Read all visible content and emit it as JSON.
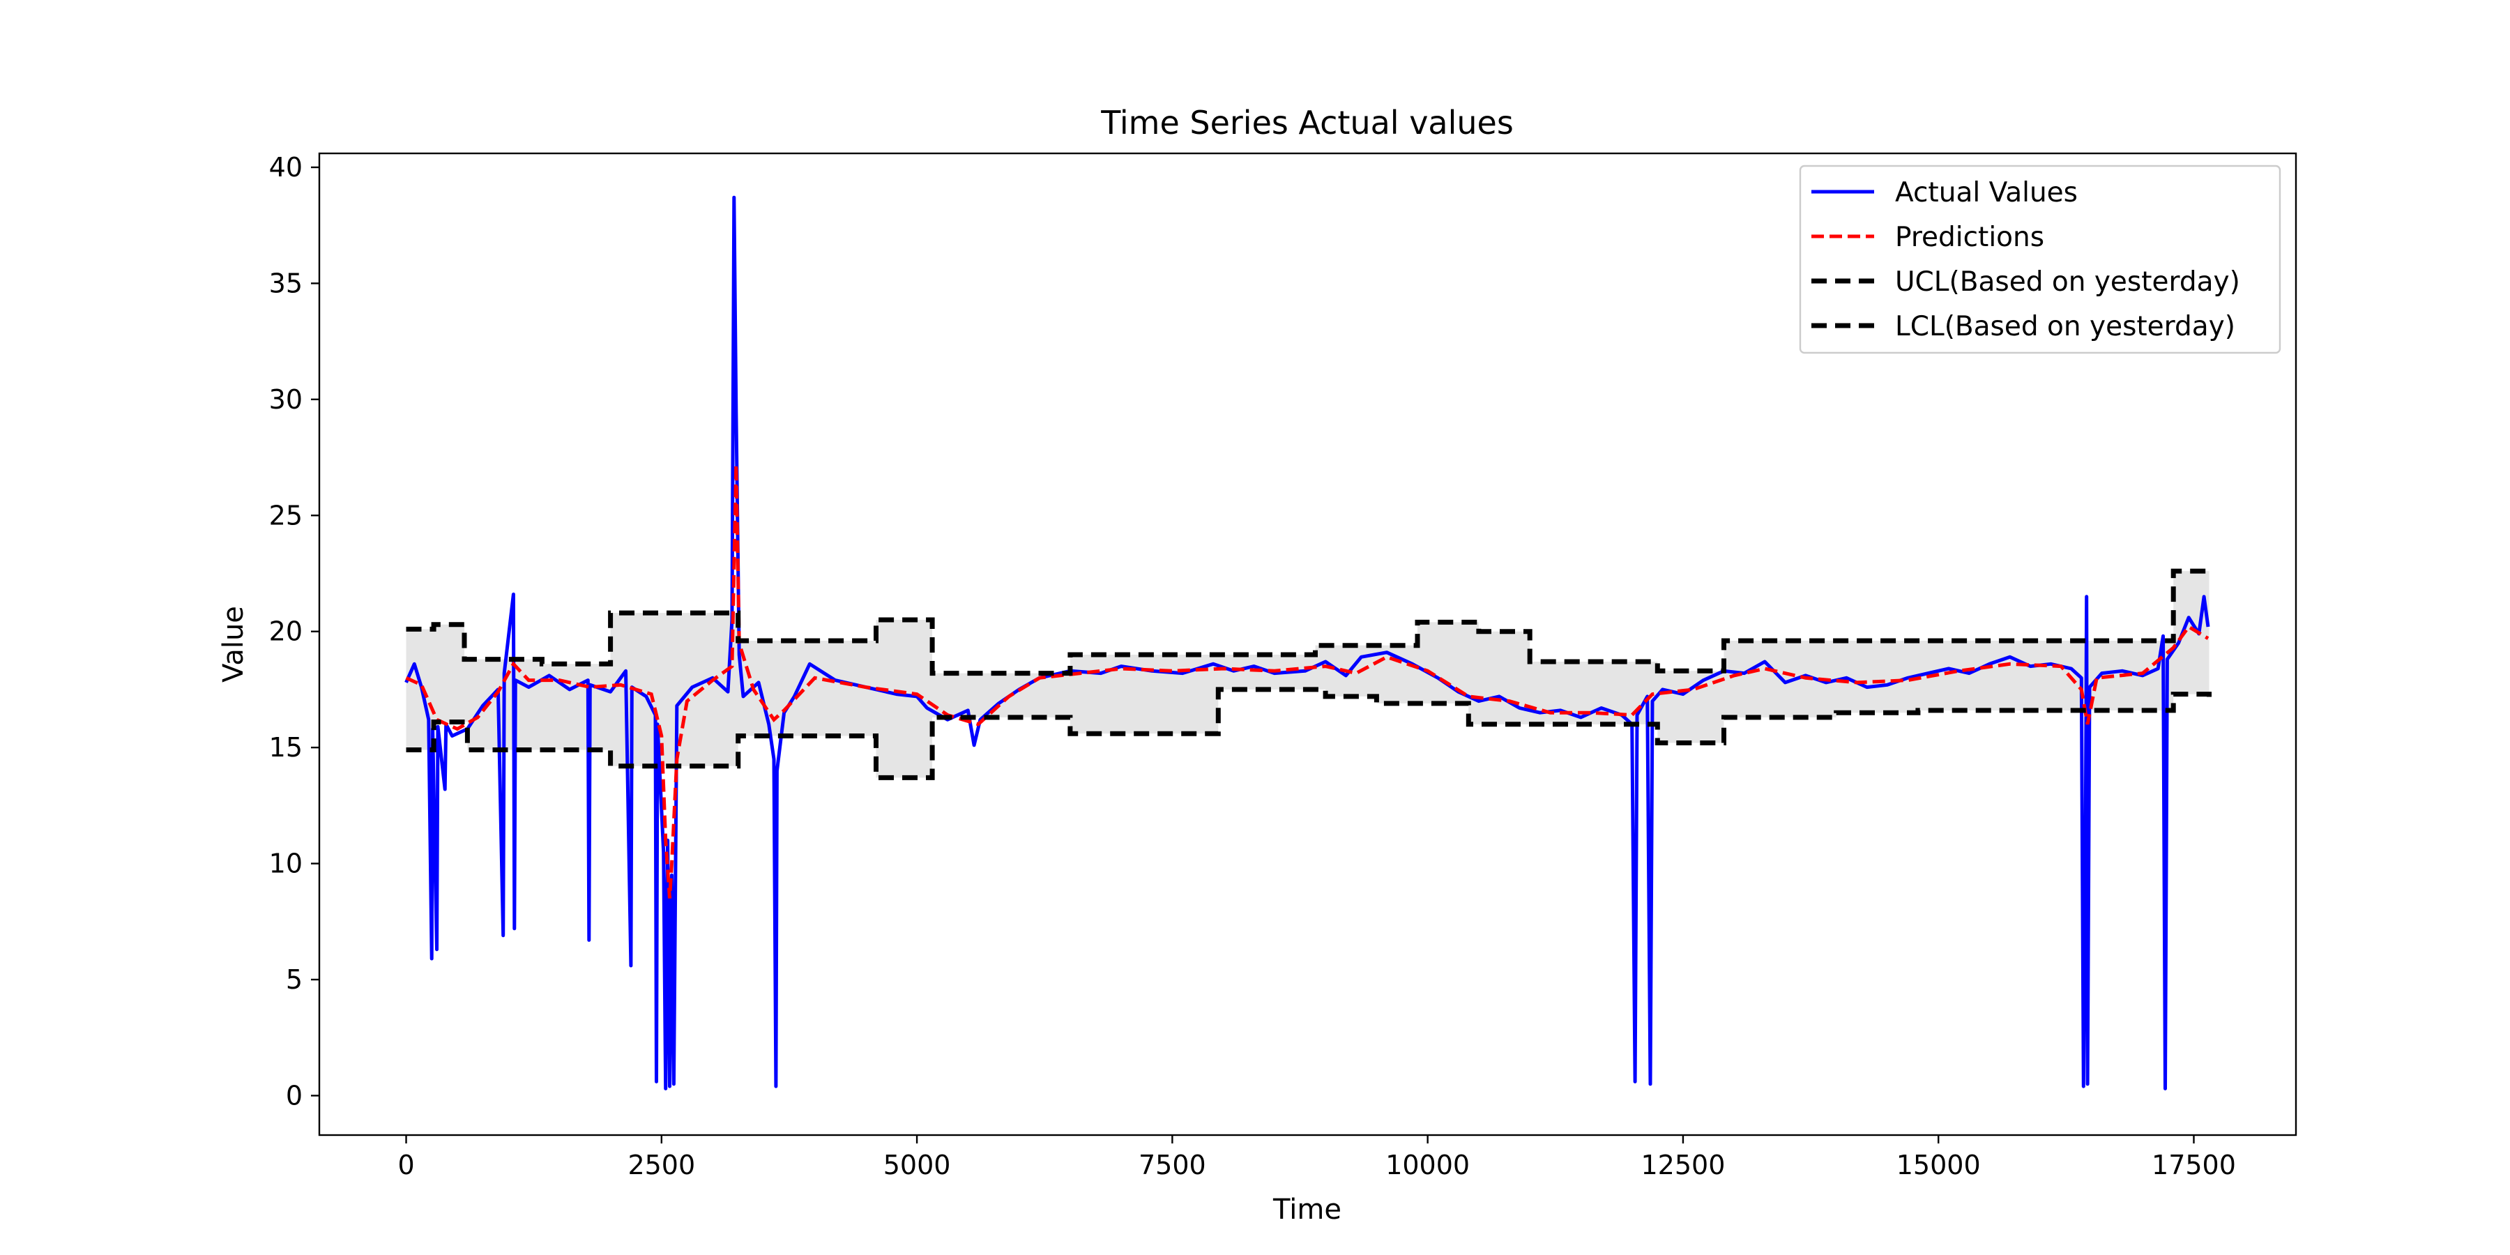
{
  "chart_data": {
    "type": "line",
    "title": "Time Series Actual values",
    "xlabel": "Time",
    "ylabel": "Value",
    "xlim": [
      -850,
      18500
    ],
    "ylim": [
      -1.7,
      40.6
    ],
    "x_ticks": [
      0,
      2500,
      5000,
      7500,
      10000,
      12500,
      15000,
      17500
    ],
    "y_ticks": [
      0,
      5,
      10,
      15,
      20,
      25,
      30,
      35,
      40
    ],
    "grid": false,
    "legend_position": "top-right",
    "colors": {
      "actual": "#0000ff",
      "predictions": "#ff0000",
      "limits": "#000000",
      "band_fill": "#e5e5e5"
    },
    "series": [
      {
        "name": "Actual Values",
        "style": "solid",
        "color": "#0000ff",
        "points": [
          [
            0,
            17.8
          ],
          [
            80,
            18.6
          ],
          [
            150,
            17.6
          ],
          [
            220,
            16.2
          ],
          [
            250,
            5.9
          ],
          [
            260,
            15.8
          ],
          [
            300,
            6.3
          ],
          [
            310,
            15.9
          ],
          [
            380,
            13.2
          ],
          [
            390,
            16.0
          ],
          [
            450,
            15.5
          ],
          [
            600,
            15.8
          ],
          [
            750,
            16.8
          ],
          [
            900,
            17.5
          ],
          [
            950,
            6.9
          ],
          [
            960,
            18.2
          ],
          [
            1050,
            21.6
          ],
          [
            1060,
            7.2
          ],
          [
            1070,
            17.9
          ],
          [
            1200,
            17.6
          ],
          [
            1400,
            18.1
          ],
          [
            1600,
            17.5
          ],
          [
            1780,
            17.9
          ],
          [
            1790,
            6.7
          ],
          [
            1800,
            17.7
          ],
          [
            2000,
            17.4
          ],
          [
            2150,
            18.3
          ],
          [
            2200,
            5.6
          ],
          [
            2210,
            17.6
          ],
          [
            2350,
            17.2
          ],
          [
            2440,
            16.4
          ],
          [
            2450,
            0.6
          ],
          [
            2460,
            16.0
          ],
          [
            2520,
            10.5
          ],
          [
            2540,
            0.3
          ],
          [
            2560,
            11.0
          ],
          [
            2580,
            0.4
          ],
          [
            2600,
            9.5
          ],
          [
            2620,
            0.5
          ],
          [
            2650,
            16.8
          ],
          [
            2800,
            17.6
          ],
          [
            3000,
            18.0
          ],
          [
            3150,
            17.4
          ],
          [
            3190,
            20.5
          ],
          [
            3210,
            38.7
          ],
          [
            3230,
            29.5
          ],
          [
            3260,
            19.0
          ],
          [
            3300,
            17.2
          ],
          [
            3450,
            17.8
          ],
          [
            3550,
            16.0
          ],
          [
            3600,
            14.5
          ],
          [
            3620,
            0.4
          ],
          [
            3630,
            14.0
          ],
          [
            3700,
            16.5
          ],
          [
            3800,
            17.2
          ],
          [
            3950,
            18.6
          ],
          [
            4200,
            17.9
          ],
          [
            4500,
            17.6
          ],
          [
            4800,
            17.3
          ],
          [
            5000,
            17.2
          ],
          [
            5100,
            16.7
          ],
          [
            5300,
            16.2
          ],
          [
            5500,
            16.6
          ],
          [
            5560,
            15.1
          ],
          [
            5620,
            16.2
          ],
          [
            5800,
            16.9
          ],
          [
            6000,
            17.5
          ],
          [
            6200,
            18.0
          ],
          [
            6500,
            18.3
          ],
          [
            6800,
            18.2
          ],
          [
            7000,
            18.5
          ],
          [
            7300,
            18.3
          ],
          [
            7600,
            18.2
          ],
          [
            7900,
            18.6
          ],
          [
            8100,
            18.3
          ],
          [
            8300,
            18.5
          ],
          [
            8500,
            18.2
          ],
          [
            8800,
            18.3
          ],
          [
            9000,
            18.7
          ],
          [
            9200,
            18.1
          ],
          [
            9350,
            18.9
          ],
          [
            9600,
            19.1
          ],
          [
            9850,
            18.6
          ],
          [
            10100,
            18.0
          ],
          [
            10300,
            17.4
          ],
          [
            10500,
            17.0
          ],
          [
            10700,
            17.2
          ],
          [
            10900,
            16.7
          ],
          [
            11100,
            16.5
          ],
          [
            11300,
            16.6
          ],
          [
            11500,
            16.3
          ],
          [
            11700,
            16.7
          ],
          [
            11900,
            16.4
          ],
          [
            12000,
            16.0
          ],
          [
            12030,
            0.6
          ],
          [
            12050,
            16.4
          ],
          [
            12150,
            17.2
          ],
          [
            12180,
            0.5
          ],
          [
            12200,
            17.0
          ],
          [
            12300,
            17.5
          ],
          [
            12500,
            17.3
          ],
          [
            12700,
            17.9
          ],
          [
            12900,
            18.3
          ],
          [
            13100,
            18.2
          ],
          [
            13300,
            18.7
          ],
          [
            13500,
            17.8
          ],
          [
            13700,
            18.1
          ],
          [
            13900,
            17.8
          ],
          [
            14100,
            18.0
          ],
          [
            14300,
            17.6
          ],
          [
            14500,
            17.7
          ],
          [
            14700,
            18.0
          ],
          [
            14900,
            18.2
          ],
          [
            15100,
            18.4
          ],
          [
            15300,
            18.2
          ],
          [
            15500,
            18.6
          ],
          [
            15700,
            18.9
          ],
          [
            15900,
            18.5
          ],
          [
            16100,
            18.6
          ],
          [
            16300,
            18.4
          ],
          [
            16400,
            18.0
          ],
          [
            16420,
            0.4
          ],
          [
            16440,
            11.2
          ],
          [
            16450,
            21.5
          ],
          [
            16460,
            0.5
          ],
          [
            16480,
            17.6
          ],
          [
            16600,
            18.2
          ],
          [
            16800,
            18.3
          ],
          [
            17000,
            18.1
          ],
          [
            17150,
            18.4
          ],
          [
            17200,
            19.8
          ],
          [
            17220,
            0.3
          ],
          [
            17240,
            18.8
          ],
          [
            17350,
            19.5
          ],
          [
            17450,
            20.6
          ],
          [
            17550,
            19.9
          ],
          [
            17600,
            21.5
          ],
          [
            17640,
            20.2
          ]
        ]
      },
      {
        "name": "Predictions",
        "style": "dashed",
        "color": "#ff0000",
        "points": [
          [
            0,
            18.0
          ],
          [
            150,
            17.7
          ],
          [
            300,
            16.2
          ],
          [
            500,
            15.8
          ],
          [
            700,
            16.3
          ],
          [
            900,
            17.4
          ],
          [
            1050,
            18.6
          ],
          [
            1200,
            17.9
          ],
          [
            1500,
            17.9
          ],
          [
            1800,
            17.6
          ],
          [
            2100,
            17.7
          ],
          [
            2400,
            17.3
          ],
          [
            2500,
            15.5
          ],
          [
            2540,
            11.0
          ],
          [
            2580,
            8.5
          ],
          [
            2600,
            10.0
          ],
          [
            2650,
            14.5
          ],
          [
            2750,
            17.0
          ],
          [
            3000,
            17.9
          ],
          [
            3190,
            18.5
          ],
          [
            3230,
            27.2
          ],
          [
            3260,
            19.5
          ],
          [
            3400,
            17.5
          ],
          [
            3600,
            16.2
          ],
          [
            3700,
            16.6
          ],
          [
            4000,
            18.0
          ],
          [
            4500,
            17.6
          ],
          [
            5000,
            17.3
          ],
          [
            5300,
            16.4
          ],
          [
            5600,
            16.0
          ],
          [
            5900,
            17.2
          ],
          [
            6200,
            18.0
          ],
          [
            6600,
            18.2
          ],
          [
            7000,
            18.4
          ],
          [
            7500,
            18.3
          ],
          [
            8000,
            18.4
          ],
          [
            8500,
            18.3
          ],
          [
            9000,
            18.5
          ],
          [
            9300,
            18.2
          ],
          [
            9600,
            18.9
          ],
          [
            10000,
            18.3
          ],
          [
            10400,
            17.2
          ],
          [
            10800,
            17.0
          ],
          [
            11200,
            16.5
          ],
          [
            11600,
            16.5
          ],
          [
            12000,
            16.4
          ],
          [
            12200,
            17.3
          ],
          [
            12600,
            17.5
          ],
          [
            13000,
            18.1
          ],
          [
            13300,
            18.4
          ],
          [
            13700,
            18.0
          ],
          [
            14200,
            17.8
          ],
          [
            14700,
            17.9
          ],
          [
            15200,
            18.3
          ],
          [
            15700,
            18.6
          ],
          [
            16200,
            18.5
          ],
          [
            16400,
            17.5
          ],
          [
            16460,
            16.0
          ],
          [
            16550,
            18.0
          ],
          [
            17000,
            18.2
          ],
          [
            17300,
            19.3
          ],
          [
            17450,
            20.2
          ],
          [
            17640,
            19.7
          ]
        ]
      },
      {
        "name": "UCL(Based on yesterday)",
        "style": "dashed",
        "color": "#000000",
        "steps": [
          [
            0,
            20.1
          ],
          [
            270,
            20.3
          ],
          [
            570,
            18.8
          ],
          [
            1330,
            18.6
          ],
          [
            2000,
            20.8
          ],
          [
            3250,
            19.6
          ],
          [
            4600,
            20.5
          ],
          [
            5150,
            18.2
          ],
          [
            6500,
            19.0
          ],
          [
            7950,
            19.0
          ],
          [
            8900,
            19.4
          ],
          [
            9900,
            20.4
          ],
          [
            10500,
            20.0
          ],
          [
            11000,
            18.7
          ],
          [
            12250,
            18.3
          ],
          [
            12900,
            19.6
          ],
          [
            16600,
            19.6
          ],
          [
            17300,
            22.6
          ],
          [
            17650,
            22.6
          ]
        ]
      },
      {
        "name": "LCL(Based on yesterday)",
        "style": "dashed",
        "color": "#000000",
        "steps": [
          [
            0,
            14.9
          ],
          [
            270,
            16.1
          ],
          [
            600,
            14.9
          ],
          [
            2000,
            14.2
          ],
          [
            3250,
            15.5
          ],
          [
            4600,
            13.7
          ],
          [
            5150,
            16.3
          ],
          [
            6500,
            15.6
          ],
          [
            7950,
            17.5
          ],
          [
            9000,
            17.2
          ],
          [
            9500,
            16.9
          ],
          [
            10400,
            16.0
          ],
          [
            12250,
            15.2
          ],
          [
            12900,
            16.3
          ],
          [
            14000,
            16.5
          ],
          [
            14800,
            16.6
          ],
          [
            16600,
            16.6
          ],
          [
            17300,
            17.3
          ],
          [
            17650,
            17.1
          ]
        ]
      }
    ]
  }
}
